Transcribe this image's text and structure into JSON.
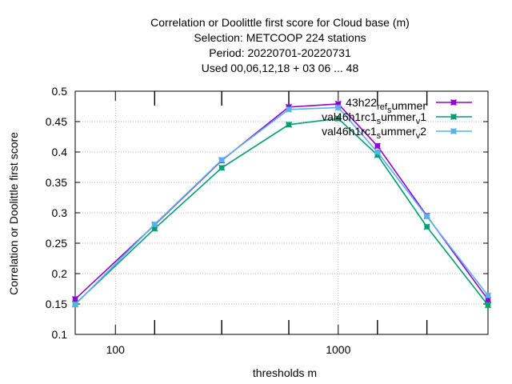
{
  "chart_data": {
    "type": "line",
    "title_lines": [
      "Correlation or Doolittle first score  for Cloud base (m)",
      "Selection: METCOOP    224 stations",
      "Period: 20220701-20220731",
      "Used  00,06,12,18  + 03 06 ... 48"
    ],
    "xlabel": "thresholds m",
    "ylabel": "Correlation or Doolittle first score",
    "x_scale": "log",
    "xlim": [
      66,
      4700
    ],
    "ylim": [
      0.1,
      0.5
    ],
    "x_ticks": [
      100,
      1000
    ],
    "x_tick_labels": [
      "100",
      "1000"
    ],
    "y_ticks": [
      0.1,
      0.15,
      0.2,
      0.25,
      0.3,
      0.35,
      0.4,
      0.45,
      0.5
    ],
    "y_tick_labels": [
      "0.1",
      "0.15",
      "0.2",
      "0.25",
      "0.3",
      "0.35",
      "0.4",
      "0.45",
      "0.5"
    ],
    "grid": true,
    "legend_position": "top-right",
    "x": [
      66,
      150,
      300,
      600,
      1000,
      1500,
      2500,
      4700
    ],
    "series": [
      {
        "name": "43h22_ref_summer",
        "legend_parts": [
          [
            "43h22",
            ""
          ],
          [
            "ref",
            "sub"
          ],
          [
            "s",
            "sub"
          ],
          [
            "ummer",
            ""
          ]
        ],
        "color": "#9400d3",
        "values": [
          0.158,
          0.28,
          0.386,
          0.474,
          0.479,
          0.41,
          0.295,
          0.157
        ]
      },
      {
        "name": "val46h1rc1_summer_v1",
        "legend_parts": [
          [
            "val46h1rc1",
            ""
          ],
          [
            "s",
            "sub"
          ],
          [
            "ummer",
            ""
          ],
          [
            "v",
            "sub"
          ],
          [
            "1",
            ""
          ]
        ],
        "color": "#009e73",
        "values": [
          0.15,
          0.274,
          0.374,
          0.445,
          0.455,
          0.395,
          0.277,
          0.148
        ]
      },
      {
        "name": "val46h1rc1_summer_v2",
        "legend_parts": [
          [
            "val46h1rc1",
            ""
          ],
          [
            "s",
            "sub"
          ],
          [
            "ummer",
            ""
          ],
          [
            "v",
            "sub"
          ],
          [
            "2",
            ""
          ]
        ],
        "color": "#56b4e9",
        "values": [
          0.149,
          0.281,
          0.387,
          0.47,
          0.473,
          0.4,
          0.294,
          0.164
        ]
      }
    ]
  }
}
